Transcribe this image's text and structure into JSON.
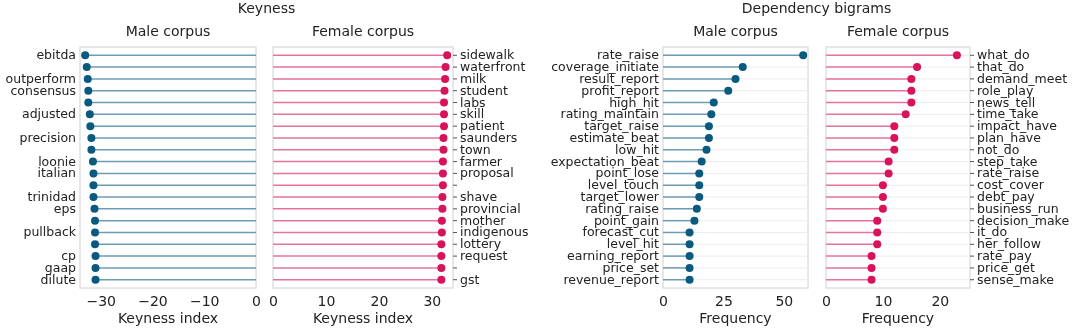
{
  "chart_data": [
    {
      "type": "lollipop",
      "orientation": "horizontal",
      "title": "Keyness",
      "subtitle": "Male corpus",
      "xlabel": "Keyness index",
      "categories": [
        "ebitda",
        null,
        "outperform",
        "consensus",
        null,
        "adjusted",
        null,
        "precision",
        null,
        "loonie",
        "italian",
        null,
        "trinidad",
        "eps",
        null,
        "pullback",
        null,
        "cp",
        "gaap",
        "dilute"
      ],
      "series": [
        {
          "color": "#0a5a80",
          "values": [
            -33.0,
            -32.7,
            -32.5,
            -32.4,
            -32.4,
            -32.1,
            -32.0,
            -31.8,
            -31.8,
            -31.5,
            -31.4,
            -31.4,
            -31.4,
            -31.2,
            -31.1,
            -31.1,
            -31.1,
            -31.0,
            -31.0,
            -31.0
          ]
        }
      ],
      "xlim": [
        -34,
        0
      ],
      "xticks": [
        {
          "value": -30,
          "label": "−30"
        },
        {
          "value": -20,
          "label": "−20"
        },
        {
          "value": -10,
          "label": "−10"
        },
        0
      ]
    },
    {
      "type": "lollipop",
      "orientation": "horizontal",
      "subtitle": "Female corpus",
      "xlabel": "Keyness index",
      "categories": [
        "sidewalk",
        "waterfront",
        "milk",
        "student",
        "labs",
        "skill",
        "patient",
        "saunders",
        "town",
        "farmer",
        "proposal",
        null,
        "shave",
        "provincial",
        "mother",
        "indigenous",
        "lottery",
        "request",
        null,
        "gst"
      ],
      "series": [
        {
          "color": "#d8125b",
          "values": [
            32.9,
            32.6,
            32.5,
            32.4,
            32.3,
            32.3,
            32.3,
            32.2,
            32.2,
            32.1,
            32.1,
            32.1,
            32.0,
            32.0,
            31.9,
            31.9,
            31.8,
            31.8,
            31.8,
            31.8
          ]
        }
      ],
      "xlim": [
        0,
        34
      ],
      "xticks": [
        0,
        10,
        20,
        30
      ]
    },
    {
      "type": "lollipop",
      "orientation": "horizontal",
      "title": "Dependency bigrams",
      "subtitle": "Male corpus",
      "xlabel": "Frequency",
      "categories": [
        "rate_raise",
        "coverage_initiate",
        "result_report",
        "profit_report",
        "high_hit",
        "rating_maintain",
        "target_raise",
        "estimate_beat",
        "low_hit",
        "expectation_beat",
        "point_lose",
        "level_touch",
        "target_lower",
        "rating_raise",
        "point_gain",
        "forecast_cut",
        "level_hit",
        "earning_report",
        "price_set",
        "revenue_report"
      ],
      "series": [
        {
          "color": "#0a5a80",
          "values": [
            58,
            33,
            30,
            27,
            21,
            20,
            19,
            19,
            18,
            16,
            15,
            15,
            15,
            14,
            13,
            11,
            11,
            11,
            11,
            11
          ]
        }
      ],
      "xlim": [
        0,
        60
      ],
      "xticks": [
        0,
        25,
        50
      ],
      "grid": "y"
    },
    {
      "type": "lollipop",
      "orientation": "horizontal",
      "subtitle": "Female corpus",
      "xlabel": "Frequency",
      "categories": [
        "what_do",
        "that_do",
        "demand_meet",
        "role_play",
        "news_tell",
        "time_take",
        "impact_have",
        "plan_have",
        "not_do",
        "step_take",
        "rate_raise",
        "cost_cover",
        "debt_pay",
        "business_run",
        "decision_make",
        "it_do",
        "her_follow",
        "rate_pay",
        "price_get",
        "sense_make"
      ],
      "series": [
        {
          "color": "#d8125b",
          "values": [
            23,
            16,
            15,
            15,
            15,
            14,
            12,
            12,
            12,
            11,
            11,
            10,
            10,
            10,
            9,
            9,
            9,
            8,
            8,
            8
          ]
        }
      ],
      "xlim": [
        0,
        25.3
      ],
      "xticks": [
        0,
        10,
        20
      ],
      "grid": "y"
    }
  ]
}
